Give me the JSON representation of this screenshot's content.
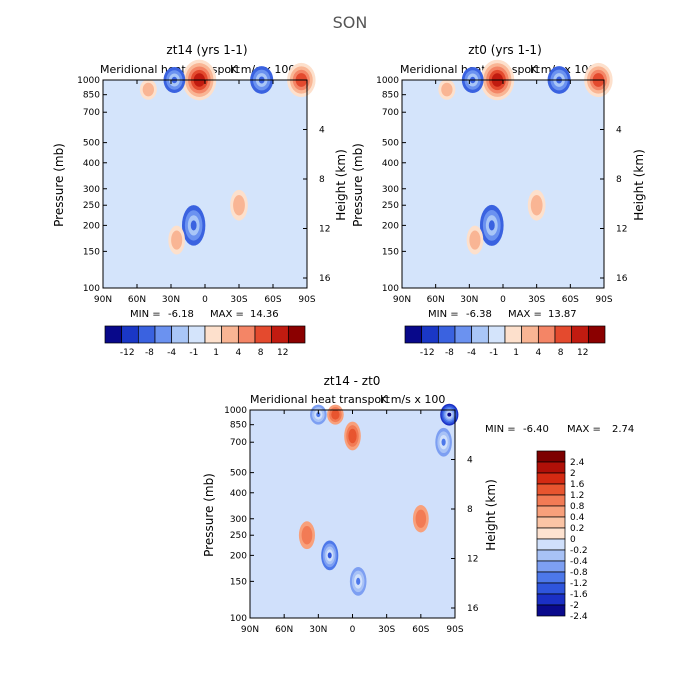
{
  "figure": {
    "title": "SON",
    "font_color": "#000000"
  },
  "colors": {
    "abs_scale": [
      "#08088a",
      "#1a37c6",
      "#3a62e0",
      "#6b92f0",
      "#a9c6f7",
      "#d4e4fb",
      "#fde0cc",
      "#f9b594",
      "#f48566",
      "#e44a2e",
      "#c11b10",
      "#8b0000"
    ],
    "diff_scale": [
      "#0a0a8c",
      "#1b30c5",
      "#2f55dc",
      "#4d78ea",
      "#7d9ff2",
      "#a8c2f6",
      "#d0e0fb",
      "#fde2d0",
      "#fbc4a5",
      "#f8a07b",
      "#f27b55",
      "#e8552f",
      "#d42a12",
      "#b01008",
      "#7d0000"
    ]
  },
  "chart_data": [
    {
      "id": "panel-a",
      "type": "heatmap",
      "title": "zt14 (yrs 1-1)",
      "subtitle": "Meridional heat transport",
      "subtitle_right": "K m/s x 100",
      "xlabel": "",
      "ylabel": "Pressure (mb)",
      "y2label": "Height (km)",
      "x_ticks": [
        "90N",
        "60N",
        "30N",
        "0",
        "30S",
        "60S",
        "90S"
      ],
      "y_ticks": [
        1000,
        850,
        700,
        500,
        400,
        300,
        250,
        200,
        150,
        100
      ],
      "y2_ticks": [
        4,
        8,
        12,
        16
      ],
      "min_label": "MIN =",
      "min_value": "-6.18",
      "max_label": "MAX =",
      "max_value": "14.36",
      "colorbar_labels": [
        "-12",
        "-8",
        "-4",
        "-1",
        "1",
        "4",
        "8",
        "12"
      ],
      "background_value": "weak negative (light blue)",
      "features": [
        {
          "lat": 5,
          "p": 1000,
          "value": 14.4,
          "note": "surface maximum"
        },
        {
          "lat": 10,
          "p": 200,
          "value": -6.2,
          "note": "upper-level minimum"
        },
        {
          "lat": -50,
          "p": 1000,
          "value": -6.0
        },
        {
          "lat": -85,
          "p": 1000,
          "value": 10.0
        },
        {
          "lat": 27,
          "p": 1000,
          "value": -5.0
        },
        {
          "lat": -30,
          "p": 250,
          "value": 2.0
        },
        {
          "lat": 50,
          "p": 900,
          "value": 1.5
        },
        {
          "lat": 25,
          "p": 170,
          "value": 1.2
        }
      ]
    },
    {
      "id": "panel-b",
      "type": "heatmap",
      "title": "zt0 (yrs 1-1)",
      "subtitle": "Meridional heat transport",
      "subtitle_right": "K m/s x 100",
      "xlabel": "",
      "ylabel": "Pressure (mb)",
      "y2label": "Height (km)",
      "x_ticks": [
        "90N",
        "60N",
        "30N",
        "0",
        "30S",
        "60S",
        "90S"
      ],
      "y_ticks": [
        1000,
        850,
        700,
        500,
        400,
        300,
        250,
        200,
        150,
        100
      ],
      "y2_ticks": [
        4,
        8,
        12,
        16
      ],
      "min_label": "MIN =",
      "min_value": "-6.38",
      "max_label": "MAX =",
      "max_value": "13.87",
      "colorbar_labels": [
        "-12",
        "-8",
        "-4",
        "-1",
        "1",
        "4",
        "8",
        "12"
      ],
      "background_value": "weak negative (light blue)",
      "features": [
        {
          "lat": 5,
          "p": 1000,
          "value": 13.9,
          "note": "surface maximum"
        },
        {
          "lat": 10,
          "p": 200,
          "value": -6.4,
          "note": "upper-level minimum"
        },
        {
          "lat": -50,
          "p": 1000,
          "value": -6.0
        },
        {
          "lat": -85,
          "p": 1000,
          "value": 10.0
        },
        {
          "lat": 27,
          "p": 1000,
          "value": -5.0
        },
        {
          "lat": -30,
          "p": 250,
          "value": 2.0
        },
        {
          "lat": 50,
          "p": 900,
          "value": 1.5
        },
        {
          "lat": 25,
          "p": 170,
          "value": 1.2
        }
      ]
    },
    {
      "id": "panel-c",
      "type": "heatmap",
      "title": "zt14 - zt0",
      "subtitle": "Meridional heat transport",
      "subtitle_right": "K m/s x 100",
      "xlabel": "",
      "ylabel": "Pressure (mb)",
      "y2label": "Height (km)",
      "x_ticks": [
        "90N",
        "60N",
        "30N",
        "0",
        "30S",
        "60S",
        "90S"
      ],
      "y_ticks": [
        1000,
        850,
        700,
        500,
        400,
        300,
        250,
        200,
        150,
        100
      ],
      "y2_ticks": [
        4,
        8,
        12,
        16
      ],
      "min_label": "MIN =",
      "min_value": "-6.40",
      "max_label": "MAX =",
      "max_value": "2.74",
      "colorbar_labels": [
        "2.4",
        "2",
        "1.6",
        "1.2",
        "0.8",
        "0.4",
        "0.2",
        "0",
        "-0.2",
        "-0.4",
        "-0.8",
        "-1.2",
        "-1.6",
        "-2",
        "-2.4"
      ],
      "background_value": "near zero (light blue)",
      "features": [
        {
          "lat": 20,
          "p": 200,
          "value": -1.6
        },
        {
          "lat": -5,
          "p": 150,
          "value": -1.2
        },
        {
          "lat": -85,
          "p": 950,
          "value": -2.4
        },
        {
          "lat": -80,
          "p": 700,
          "value": -1.2
        },
        {
          "lat": 30,
          "p": 950,
          "value": -1.2
        },
        {
          "lat": 0,
          "p": 750,
          "value": 1.2
        },
        {
          "lat": 15,
          "p": 950,
          "value": 1.2
        },
        {
          "lat": 40,
          "p": 250,
          "value": 0.8
        },
        {
          "lat": -60,
          "p": 300,
          "value": 0.6
        }
      ]
    }
  ]
}
